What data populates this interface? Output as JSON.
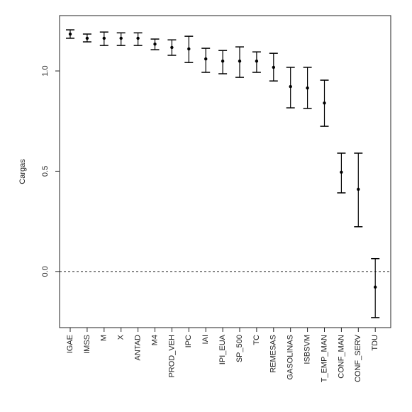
{
  "chart_data": {
    "type": "errorbar",
    "y_label": "Cargas",
    "categories": [
      "IGAE",
      "IMSS",
      "M",
      "X",
      "ANTAD",
      "M4",
      "PROD_VEH",
      "IPC",
      "IAI",
      "IPI_EUA",
      "SP_500",
      "TC",
      "REMESAS",
      "GASOLINAS",
      "ISBSVM",
      "T_EMP_MAN",
      "CONF_MAN",
      "CONF_SERV",
      "TDU"
    ],
    "values": [
      1.184,
      1.163,
      1.163,
      1.163,
      1.163,
      1.134,
      1.117,
      1.11,
      1.06,
      1.049,
      1.049,
      1.049,
      1.018,
      0.922,
      0.915,
      0.84,
      0.495,
      0.41,
      -0.078
    ],
    "lower": [
      1.163,
      1.145,
      1.127,
      1.127,
      1.127,
      1.106,
      1.078,
      1.042,
      0.993,
      0.986,
      0.968,
      0.993,
      0.95,
      0.816,
      0.813,
      0.724,
      0.392,
      0.223,
      -0.23
    ],
    "upper": [
      1.205,
      1.184,
      1.194,
      1.19,
      1.19,
      1.159,
      1.155,
      1.173,
      1.113,
      1.102,
      1.12,
      1.095,
      1.088,
      1.018,
      1.018,
      0.954,
      0.59,
      0.59,
      0.064
    ],
    "color": "#000000",
    "ylim": [
      -0.28,
      1.276
    ],
    "yticks": [
      {
        "value": 0,
        "label": "0.0"
      },
      {
        "value": 0.5,
        "label": "0.5"
      },
      {
        "value": 1,
        "label": "1.0"
      }
    ],
    "hline": 0
  }
}
